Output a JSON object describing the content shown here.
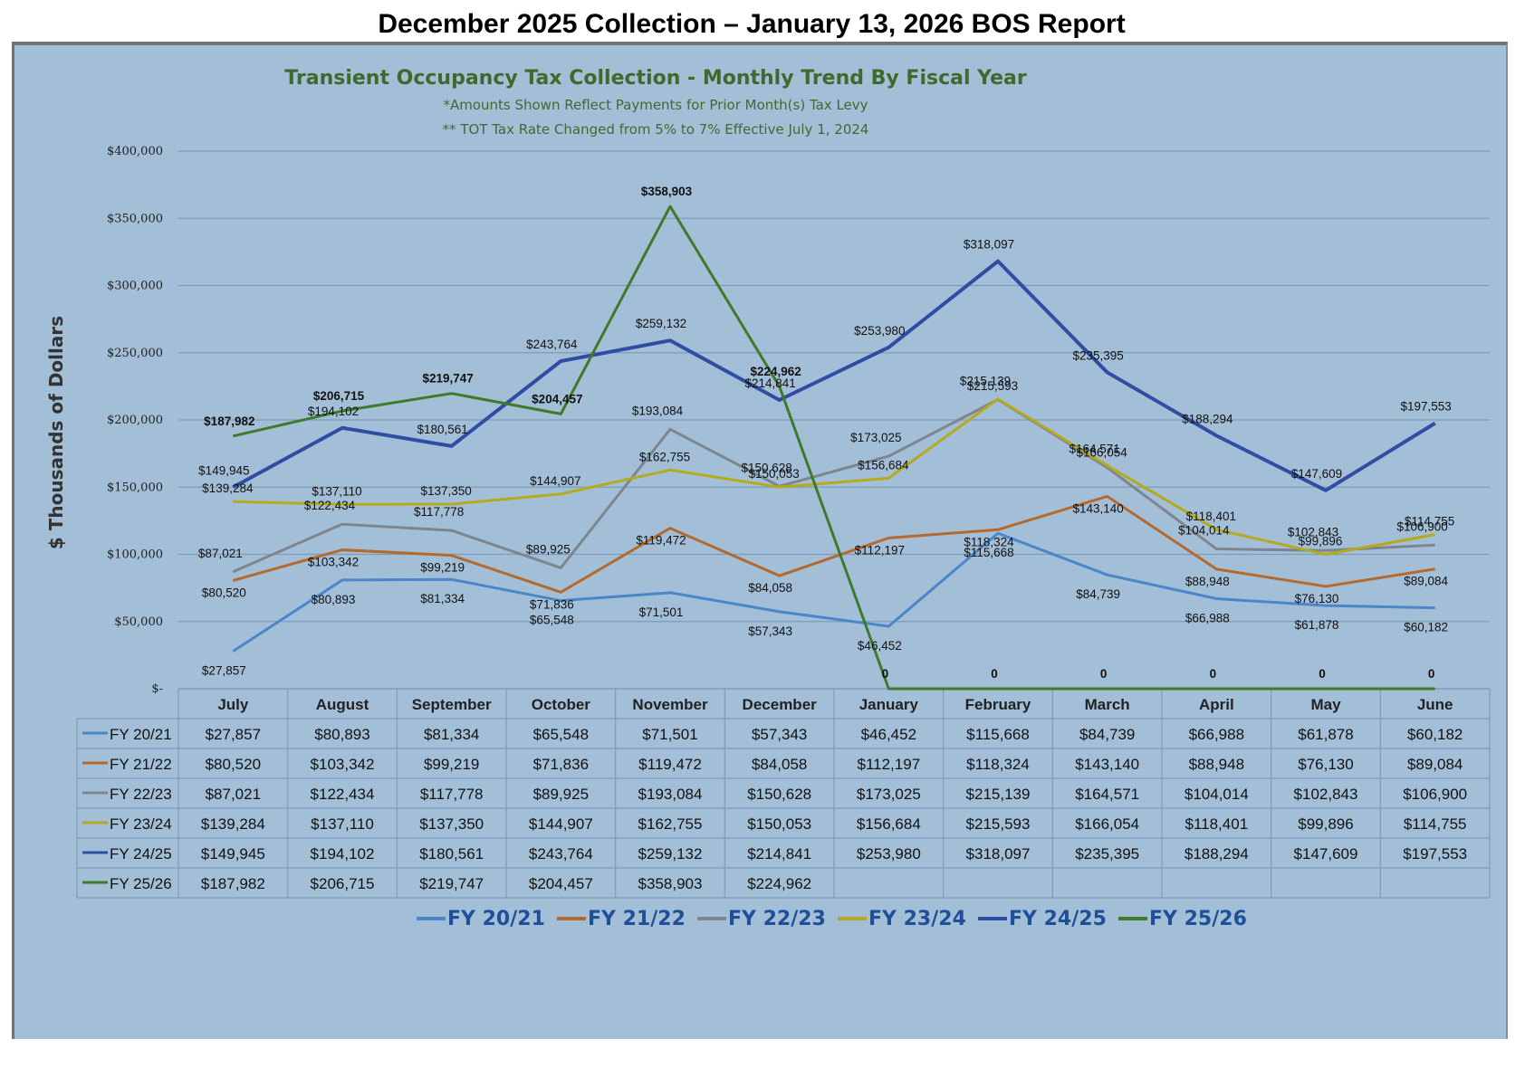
{
  "page_title": "December 2025 Collection – January 13, 2026 BOS Report",
  "colors": {
    "panel": "#a3bfd8",
    "grid": "#7e9bb6",
    "fy2021": "#4a86c9",
    "fy2122": "#b46a2e",
    "fy2223": "#7d868f",
    "fy2324": "#b4aa1c",
    "fy2425": "#2f4ea3",
    "fy2526": "#3f7a2b",
    "title_green": "#3f6a2e"
  },
  "chart_data": {
    "type": "line",
    "title": "Transient Occupancy Tax Collection - Monthly Trend By Fiscal Year",
    "subtitle1": "*Amounts Shown Reflect Payments for Prior Month(s) Tax Levy",
    "subtitle2": "** TOT Tax Rate Changed from 5% to 7% Effective July 1, 2024",
    "ylabel": "$ Thousands of Dollars",
    "ylim": [
      0,
      400000
    ],
    "yticks": [
      0,
      50000,
      100000,
      150000,
      200000,
      250000,
      300000,
      350000,
      400000
    ],
    "ytick_labels": [
      "$-",
      "$50,000",
      "$100,000",
      "$150,000",
      "$200,000",
      "$250,000",
      "$300,000",
      "$350,000",
      "$400,000"
    ],
    "grid": true,
    "legend": "bottom",
    "categories": [
      "July",
      "August",
      "September",
      "October",
      "November",
      "December",
      "January",
      "February",
      "March",
      "April",
      "May",
      "June"
    ],
    "series": [
      {
        "name": "FY 20/21",
        "color": "#4a86c9",
        "values": [
          27857,
          80893,
          81334,
          65548,
          71501,
          57343,
          46452,
          115668,
          84739,
          66988,
          61878,
          60182
        ],
        "labels": [
          "$27,857",
          "$80,893",
          "$81,334",
          "$65,548",
          "$71,501",
          "$57,343",
          "$46,452",
          "$115,668",
          "$84,739",
          "$66,988",
          "$61,878",
          "$60,182"
        ]
      },
      {
        "name": "FY 21/22",
        "color": "#b46a2e",
        "values": [
          80520,
          103342,
          99219,
          71836,
          119472,
          84058,
          112197,
          118324,
          143140,
          88948,
          76130,
          89084
        ],
        "labels": [
          "$80,520",
          "$103,342",
          "$99,219",
          "$71,836",
          "$119,472",
          "$84,058",
          "$112,197",
          "$118,324",
          "$143,140",
          "$88,948",
          "$76,130",
          "$89,084"
        ]
      },
      {
        "name": "FY 22/23",
        "color": "#7d868f",
        "values": [
          87021,
          122434,
          117778,
          89925,
          193084,
          150628,
          173025,
          215139,
          164571,
          104014,
          102843,
          106900
        ],
        "labels": [
          "$87,021",
          "$122,434",
          "$117,778",
          "$89,925",
          "$193,084",
          "$150,628",
          "$173,025",
          "$215,139",
          "$164,571",
          "$104,014",
          "$102,843",
          "$106,900"
        ]
      },
      {
        "name": "FY 23/24",
        "color": "#b4aa1c",
        "values": [
          139284,
          137110,
          137350,
          144907,
          162755,
          150053,
          156684,
          215593,
          166054,
          118401,
          99896,
          114755
        ],
        "labels": [
          "$139,284",
          "$137,110",
          "$137,350",
          "$144,907",
          "$162,755",
          "$150,053",
          "$156,684",
          "$215,593",
          "$166,054",
          "$118,401",
          "$99,896",
          "$114,755"
        ]
      },
      {
        "name": "FY 24/25",
        "color": "#2f4ea3",
        "values": [
          149945,
          194102,
          180561,
          243764,
          259132,
          214841,
          253980,
          318097,
          235395,
          188294,
          147609,
          197553
        ],
        "labels": [
          "$149,945",
          "$194,102",
          "$180,561",
          "$243,764",
          "$259,132",
          "$214,841",
          "$253,980",
          "$318,097",
          "$235,395",
          "$188,294",
          "$147,609",
          "$197,553"
        ]
      },
      {
        "name": "FY 25/26",
        "color": "#3f7a2b",
        "values": [
          187982,
          206715,
          219747,
          204457,
          358903,
          224962,
          0,
          0,
          0,
          0,
          0,
          0
        ],
        "labels": [
          "$187,982",
          "$206,715",
          "$219,747",
          "$204,457",
          "$358,903",
          "$224,962",
          "0",
          "0",
          "0",
          "0",
          "0",
          "0"
        ]
      }
    ],
    "table_rows": [
      {
        "name": "FY 20/21",
        "cells": [
          "$27,857",
          "$80,893",
          "$81,334",
          "$65,548",
          "$71,501",
          "$57,343",
          "$46,452",
          "$115,668",
          "$84,739",
          "$66,988",
          "$61,878",
          "$60,182"
        ]
      },
      {
        "name": "FY 21/22",
        "cells": [
          "$80,520",
          "$103,342",
          "$99,219",
          "$71,836",
          "$119,472",
          "$84,058",
          "$112,197",
          "$118,324",
          "$143,140",
          "$88,948",
          "$76,130",
          "$89,084"
        ]
      },
      {
        "name": "FY 22/23",
        "cells": [
          "$87,021",
          "$122,434",
          "$117,778",
          "$89,925",
          "$193,084",
          "$150,628",
          "$173,025",
          "$215,139",
          "$164,571",
          "$104,014",
          "$102,843",
          "$106,900"
        ]
      },
      {
        "name": "FY 23/24",
        "cells": [
          "$139,284",
          "$137,110",
          "$137,350",
          "$144,907",
          "$162,755",
          "$150,053",
          "$156,684",
          "$215,593",
          "$166,054",
          "$118,401",
          "$99,896",
          "$114,755"
        ]
      },
      {
        "name": "FY 24/25",
        "cells": [
          "$149,945",
          "$194,102",
          "$180,561",
          "$243,764",
          "$259,132",
          "$214,841",
          "$253,980",
          "$318,097",
          "$235,395",
          "$188,294",
          "$147,609",
          "$197,553"
        ]
      },
      {
        "name": "FY 25/26",
        "cells": [
          "$187,982",
          "$206,715",
          "$219,747",
          "$204,457",
          "$358,903",
          "$224,962",
          "",
          "",
          "",
          "",
          "",
          ""
        ]
      }
    ]
  }
}
